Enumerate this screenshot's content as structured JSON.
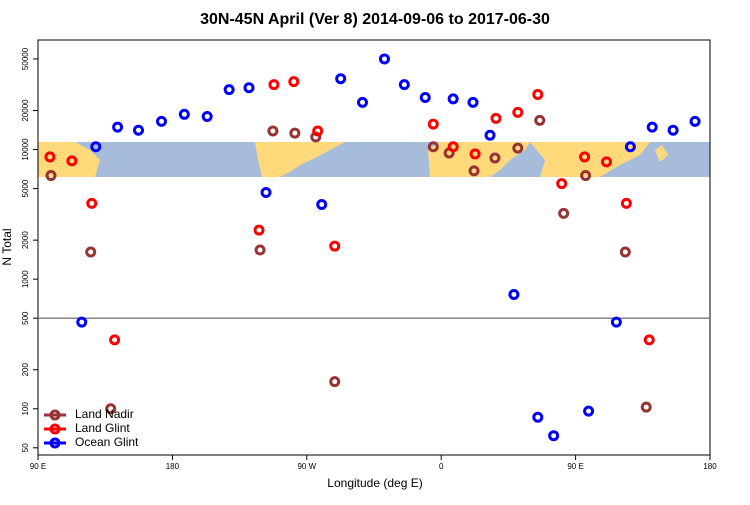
{
  "chart_data": {
    "type": "scatter",
    "title": "30N-45N April (Ver 8)   2014-09-06 to 2017-06-30",
    "x_label": "Longitude (deg E)",
    "y_label": "N Total",
    "log_y": true,
    "legend": "bottom-left",
    "reference_line": 500,
    "xlim": [
      90,
      540
    ],
    "xticks": [
      {
        "value": 90,
        "label": "90 E"
      },
      {
        "value": 180,
        "label": "180"
      },
      {
        "value": 270,
        "label": "90 W"
      },
      {
        "value": 360,
        "label": "0"
      },
      {
        "value": 450,
        "label": "90 E"
      },
      {
        "value": 540,
        "label": "180"
      }
    ],
    "ylim": [
      44,
      70000
    ],
    "yticks": [
      50,
      100,
      200,
      500,
      1000,
      2000,
      5000,
      10000,
      20000,
      50000
    ],
    "series": [
      {
        "name": "Land Nadir",
        "color": "#993333",
        "x": [
          98.7,
          125.3,
          138.7,
          247.3,
          238.7,
          262,
          276,
          288.7,
          354.7,
          365.3,
          382,
          396,
          411.3,
          426,
          442,
          456.7,
          483.3,
          497.3
        ],
        "values": [
          6300,
          1620,
          100,
          13900,
          1680,
          13400,
          12500,
          162,
          10500,
          9400,
          6850,
          8600,
          10250,
          16800,
          3220,
          6300,
          1620,
          103
        ]
      },
      {
        "name": "Land Glint",
        "color": "#ff0000",
        "x": [
          98,
          112.7,
          126,
          141.3,
          248,
          261.3,
          277.3,
          238,
          288.7,
          354.7,
          368,
          382.7,
          396.7,
          411.3,
          424.7,
          440.7,
          456,
          470.7,
          484,
          499.3
        ],
        "values": [
          8770,
          8180,
          3840,
          340,
          31700,
          33400,
          13900,
          2390,
          1800,
          15700,
          10500,
          9250,
          17400,
          19350,
          26600,
          5460,
          8770,
          8040,
          3840,
          340
        ]
      },
      {
        "name": "Ocean Glint",
        "color": "#0000ff",
        "x": [
          119.3,
          128.7,
          143.3,
          157.3,
          172.7,
          188,
          203.3,
          218,
          231.3,
          242.7,
          280,
          292.7,
          307.3,
          322,
          335.3,
          349.3,
          368,
          381.3,
          392.7,
          408.7,
          424.7,
          435.3,
          458.7,
          477.3,
          486.7,
          501.3,
          515.3,
          530
        ],
        "values": [
          466,
          10500,
          14900,
          14100,
          16500,
          18700,
          18000,
          29000,
          30000,
          4660,
          3770,
          35200,
          23100,
          50000,
          31700,
          25200,
          24600,
          23100,
          12900,
          762,
          86,
          62,
          96,
          466,
          10500,
          14900,
          14100,
          16500
        ]
      }
    ]
  }
}
